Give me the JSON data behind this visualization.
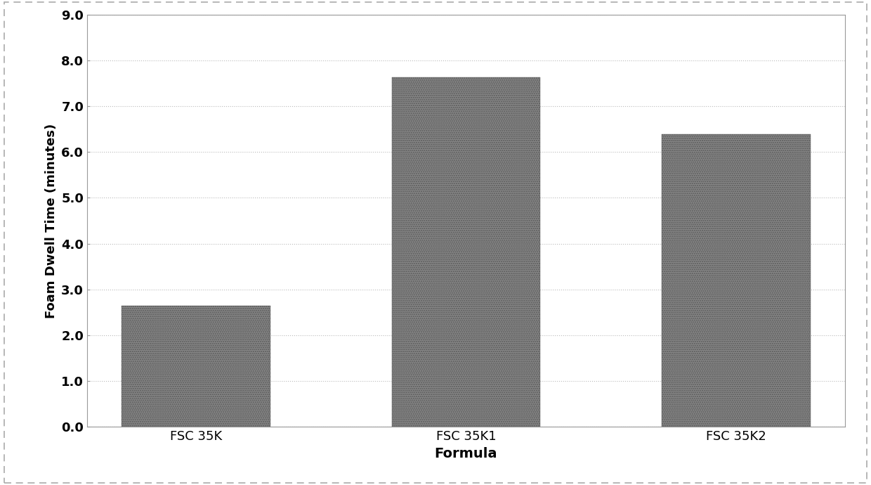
{
  "categories": [
    "FSC 35K",
    "FSC 35K1",
    "FSC 35K2"
  ],
  "values": [
    2.65,
    7.63,
    6.38
  ],
  "bar_color": "#888888",
  "ylabel": "Foam Dwell Time (minutes)",
  "xlabel": "Formula",
  "ylim": [
    0.0,
    9.0
  ],
  "yticks": [
    0.0,
    1.0,
    2.0,
    3.0,
    4.0,
    5.0,
    6.0,
    7.0,
    8.0,
    9.0
  ],
  "background_color": "#ffffff",
  "plot_bg_color": "#ffffff",
  "bar_width": 0.55,
  "xlabel_fontsize": 14,
  "ylabel_fontsize": 13,
  "tick_fontsize": 13,
  "grid_color": "#bbbbbb",
  "border_color": "#999999",
  "spine_color": "#999999"
}
